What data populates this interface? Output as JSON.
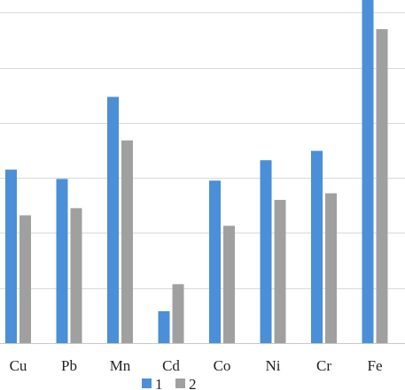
{
  "chart_data": {
    "type": "bar",
    "categories": [
      "Cu",
      "Pb",
      "Mn",
      "Cd",
      "Co",
      "Ni",
      "Cr",
      "Fe"
    ],
    "series": [
      {
        "name": "1",
        "values": [
          3.15,
          2.98,
          4.47,
          0.58,
          2.95,
          3.32,
          3.49,
          6.26
        ],
        "color": "#4a8fd8"
      },
      {
        "name": "2",
        "values": [
          2.32,
          2.45,
          3.68,
          1.07,
          2.13,
          2.6,
          2.72,
          5.7
        ],
        "color": "#a0a0a0"
      }
    ],
    "ylim": [
      0,
      6.1
    ],
    "grid": true,
    "legend_position": "bottom"
  }
}
